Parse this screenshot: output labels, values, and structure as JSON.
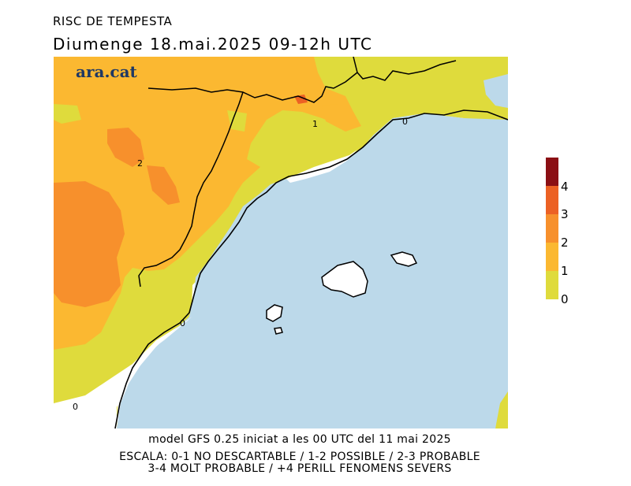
{
  "header": {
    "title": "RISC DE TEMPESTA",
    "subtitle": "Diumenge  18.mai.2025 09-12h UTC"
  },
  "map": {
    "logo": "ara.cat",
    "contour_labels": [
      "0",
      "0",
      "0",
      "1",
      "2"
    ]
  },
  "legend": {
    "labels": [
      "4",
      "3",
      "2",
      "1",
      "0"
    ],
    "colors": {
      "level_0_1": "#dfdb3c",
      "level_1_2": "#fbb831",
      "level_2_3": "#f7902c",
      "level_3_4": "#ec6124",
      "level_4_plus": "#8b0f14",
      "sea": "#bcd9ea"
    }
  },
  "footer": {
    "model_line": "model GFS 0.25 iniciat a les 00 UTC del 11 mai 2025",
    "scale_line1": "ESCALA: 0-1 NO DESCARTABLE / 1-2 POSSIBLE / 2-3 PROBABLE",
    "scale_line2": "3-4 MOLT PROBABLE / +4 PERILL FENOMENS SEVERS"
  }
}
